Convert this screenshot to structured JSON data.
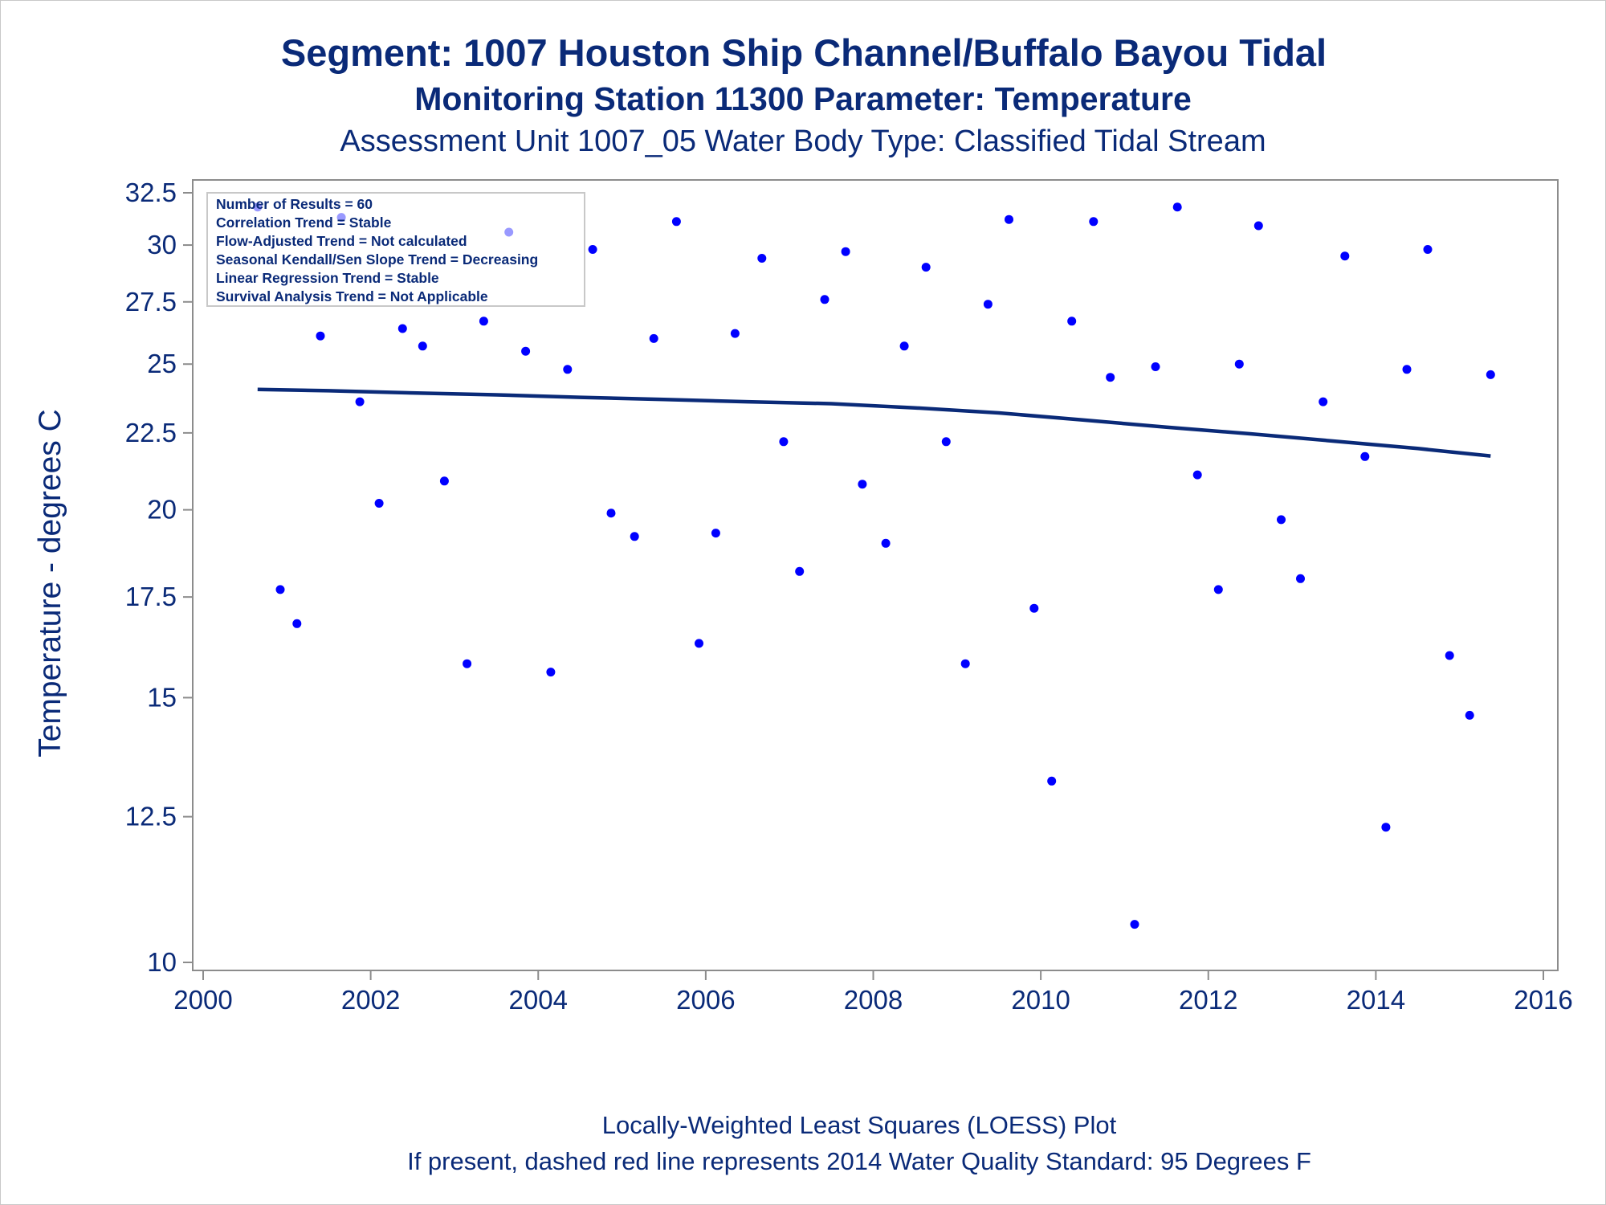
{
  "chart_data": {
    "type": "scatter",
    "title": "Segment: 1007  Houston Ship Channel/Buffalo Bayou Tidal",
    "subtitle": "Monitoring Station 11300 Parameter: Temperature",
    "subtitle2": "Assessment Unit 1007_05   Water Body Type: Classified Tidal Stream",
    "xlabel": "",
    "ylabel": "Temperature - degrees C",
    "xlim": [
      2000,
      2016
    ],
    "ylim": [
      10,
      32.5
    ],
    "y_scale": "log",
    "grid": false,
    "x_ticks": [
      "2000",
      "2002",
      "2004",
      "2006",
      "2008",
      "2010",
      "2012",
      "2014",
      "2016"
    ],
    "y_ticks": [
      "32.5",
      "30",
      "27.5",
      "25",
      "22.5",
      "20",
      "17.5",
      "15",
      "12.5",
      "10"
    ],
    "point_color": "#0000ff",
    "line_color": "#0a2a78",
    "info_box": [
      "Number of Results = 60",
      "Correlation Trend = Stable",
      "Flow-Adjusted Trend = Not calculated",
      "Seasonal Kendall/Sen Slope Trend = Decreasing",
      "Linear Regression Trend = Stable",
      "Survival Analysis Trend = Not Applicable"
    ],
    "series": [
      {
        "type": "scatter",
        "points": [
          [
            2000.65,
            31.8
          ],
          [
            2000.92,
            17.7
          ],
          [
            2001.12,
            16.8
          ],
          [
            2001.4,
            26.1
          ],
          [
            2001.65,
            31.3
          ],
          [
            2001.87,
            23.6
          ],
          [
            2002.1,
            20.2
          ],
          [
            2002.38,
            26.4
          ],
          [
            2002.62,
            25.7
          ],
          [
            2002.88,
            20.9
          ],
          [
            2003.15,
            15.8
          ],
          [
            2003.35,
            26.7
          ],
          [
            2003.65,
            30.6
          ],
          [
            2003.85,
            25.5
          ],
          [
            2004.15,
            15.6
          ],
          [
            2004.35,
            24.8
          ],
          [
            2004.65,
            29.8
          ],
          [
            2004.87,
            19.9
          ],
          [
            2005.15,
            19.2
          ],
          [
            2005.38,
            26.0
          ],
          [
            2005.65,
            31.1
          ],
          [
            2005.92,
            16.3
          ],
          [
            2006.12,
            19.3
          ],
          [
            2006.35,
            26.2
          ],
          [
            2006.67,
            29.4
          ],
          [
            2006.93,
            22.2
          ],
          [
            2007.12,
            18.2
          ],
          [
            2007.42,
            27.6
          ],
          [
            2007.67,
            29.7
          ],
          [
            2007.87,
            20.8
          ],
          [
            2008.15,
            19.0
          ],
          [
            2008.37,
            25.7
          ],
          [
            2008.63,
            29.0
          ],
          [
            2008.87,
            22.2
          ],
          [
            2009.1,
            15.8
          ],
          [
            2009.37,
            27.4
          ],
          [
            2009.62,
            31.2
          ],
          [
            2009.92,
            17.2
          ],
          [
            2010.13,
            13.2
          ],
          [
            2010.37,
            26.7
          ],
          [
            2010.63,
            31.1
          ],
          [
            2010.83,
            24.5
          ],
          [
            2011.12,
            10.6
          ],
          [
            2011.37,
            24.9
          ],
          [
            2011.63,
            31.8
          ],
          [
            2011.87,
            21.1
          ],
          [
            2012.12,
            17.7
          ],
          [
            2012.37,
            25.0
          ],
          [
            2012.6,
            30.9
          ],
          [
            2012.87,
            19.7
          ],
          [
            2013.1,
            18.0
          ],
          [
            2013.37,
            23.6
          ],
          [
            2013.63,
            29.5
          ],
          [
            2013.87,
            21.7
          ],
          [
            2014.12,
            12.3
          ],
          [
            2014.37,
            24.8
          ],
          [
            2014.62,
            29.8
          ],
          [
            2014.88,
            16.0
          ],
          [
            2015.12,
            14.6
          ],
          [
            2015.37,
            24.6
          ]
        ]
      },
      {
        "type": "line",
        "points": [
          [
            2000.65,
            24.05
          ],
          [
            2001.5,
            24.0
          ],
          [
            2002.5,
            23.92
          ],
          [
            2003.5,
            23.85
          ],
          [
            2004.5,
            23.76
          ],
          [
            2005.5,
            23.68
          ],
          [
            2006.5,
            23.6
          ],
          [
            2007.5,
            23.53
          ],
          [
            2008.5,
            23.38
          ],
          [
            2009.5,
            23.2
          ],
          [
            2010.5,
            22.95
          ],
          [
            2011.5,
            22.7
          ],
          [
            2012.5,
            22.47
          ],
          [
            2013.5,
            22.22
          ],
          [
            2014.5,
            21.97
          ],
          [
            2015.37,
            21.72
          ]
        ]
      }
    ]
  },
  "footer": {
    "line1": "Locally-Weighted Least Squares (LOESS) Plot",
    "line2": "If present, dashed red line represents 2014 Water Quality Standard: 95   Degrees F"
  }
}
